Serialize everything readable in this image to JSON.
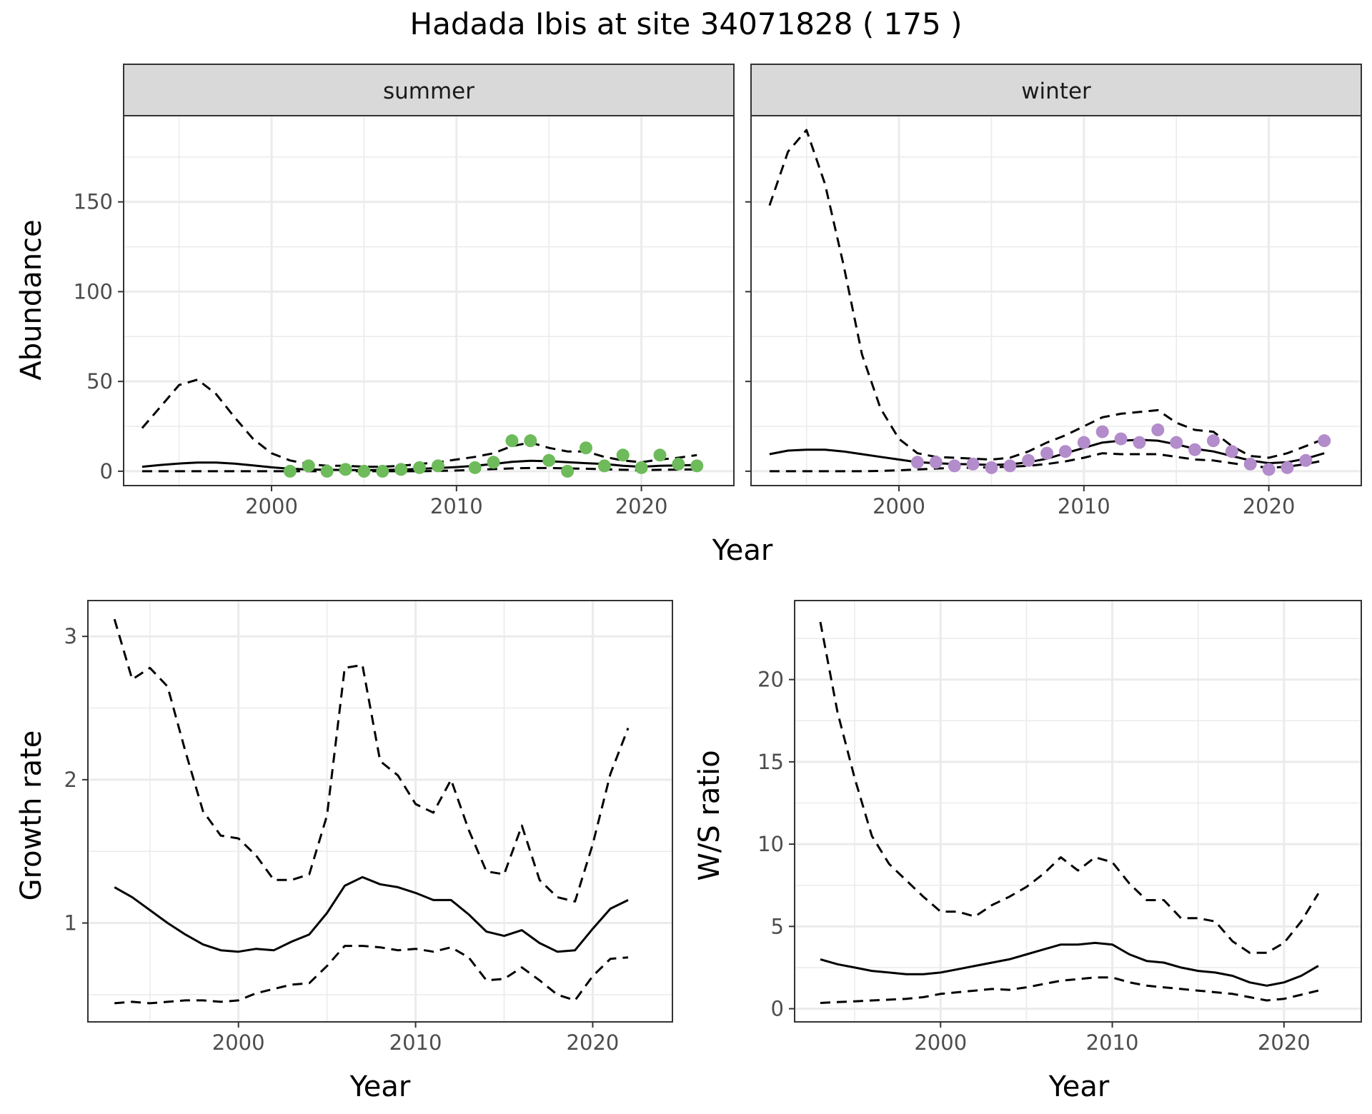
{
  "title": "Hadada Ibis at site 34071828 ( 175 )",
  "colors": {
    "summer_points": "#6dbb5a",
    "winter_points": "#b38ccb",
    "strip_fill": "#d9d9d9",
    "grid": "#ebebeb"
  },
  "chart_data": [
    {
      "type": "line",
      "facet": "summer",
      "xlabel": "Year",
      "ylabel": "Abundance",
      "xlim": [
        1992,
        2025
      ],
      "ylim": [
        -8,
        198
      ],
      "x_ticks": [
        2000,
        2010,
        2020
      ],
      "x_tick_labels": [
        "2000",
        "2010",
        "2020"
      ],
      "y_ticks": [
        0,
        50,
        100,
        150
      ],
      "y_tick_labels": [
        "0",
        "50",
        "100",
        "150"
      ],
      "grid": true,
      "series": [
        {
          "style": "solid",
          "x": [
            1993,
            1994,
            1995,
            1996,
            1997,
            1998,
            1999,
            2000,
            2001,
            2002,
            2003,
            2004,
            2005,
            2006,
            2007,
            2008,
            2009,
            2010,
            2011,
            2012,
            2013,
            2014,
            2015,
            2016,
            2017,
            2018,
            2019,
            2020,
            2021,
            2022,
            2023
          ],
          "values": [
            2.5,
            3.5,
            4.3,
            4.8,
            4.8,
            4.2,
            3.2,
            2.2,
            1.4,
            1.0,
            0.8,
            0.7,
            0.6,
            0.7,
            0.9,
            1.3,
            1.8,
            2.3,
            3.0,
            4.0,
            5.2,
            5.8,
            5.6,
            5.0,
            4.5,
            4.0,
            3.0,
            2.5,
            3.0,
            3.2,
            3.5
          ]
        },
        {
          "style": "dashed",
          "x": [
            1993,
            1994,
            1995,
            1996,
            1997,
            1998,
            1999,
            2000,
            2001,
            2002,
            2003,
            2004,
            2005,
            2006,
            2007,
            2008,
            2009,
            2010,
            2011,
            2012,
            2013,
            2014,
            2015,
            2016,
            2017,
            2018,
            2019,
            2020,
            2021,
            2022,
            2023
          ],
          "values": [
            24,
            36,
            48,
            51,
            43,
            30,
            18,
            10,
            6,
            4,
            3,
            3,
            2.5,
            2.5,
            3,
            4,
            5,
            6.5,
            8,
            10,
            14,
            16,
            13,
            11,
            11,
            8,
            6,
            5,
            6.5,
            7.5,
            9
          ]
        },
        {
          "style": "dashed",
          "x": [
            1993,
            1994,
            1995,
            1996,
            1997,
            1998,
            1999,
            2000,
            2001,
            2002,
            2003,
            2004,
            2005,
            2006,
            2007,
            2008,
            2009,
            2010,
            2011,
            2012,
            2013,
            2014,
            2015,
            2016,
            2017,
            2018,
            2019,
            2020,
            2021,
            2022,
            2023
          ],
          "values": [
            0,
            0,
            0,
            0,
            0,
            0,
            0,
            0,
            0,
            0,
            0,
            0,
            0,
            0,
            0,
            0,
            0.2,
            0.4,
            0.8,
            1.2,
            1.6,
            1.8,
            1.8,
            1.6,
            1.4,
            1.1,
            0.8,
            0.6,
            0.8,
            0.9,
            1.0
          ]
        }
      ],
      "points": {
        "x": [
          2001,
          2002,
          2003,
          2004,
          2005,
          2006,
          2007,
          2008,
          2009,
          2011,
          2012,
          2013,
          2014,
          2015,
          2016,
          2017,
          2018,
          2019,
          2020,
          2021,
          2022,
          2023
        ],
        "y": [
          0,
          3,
          0,
          1,
          0,
          0,
          1,
          2,
          3,
          2,
          5,
          17,
          17,
          6,
          0,
          13,
          3,
          9,
          2,
          9,
          4,
          3
        ]
      }
    },
    {
      "type": "line",
      "facet": "winter",
      "xlabel": "Year",
      "ylabel": "Abundance",
      "xlim": [
        1992,
        2025
      ],
      "ylim": [
        -8,
        198
      ],
      "x_ticks": [
        2000,
        2010,
        2020
      ],
      "x_tick_labels": [
        "2000",
        "2010",
        "2020"
      ],
      "y_ticks": [
        0,
        50,
        100,
        150
      ],
      "grid": true,
      "series": [
        {
          "style": "solid",
          "x": [
            1993,
            1994,
            1995,
            1996,
            1997,
            1998,
            1999,
            2000,
            2001,
            2002,
            2003,
            2004,
            2005,
            2006,
            2007,
            2008,
            2009,
            2010,
            2011,
            2012,
            2013,
            2014,
            2015,
            2016,
            2017,
            2018,
            2019,
            2020,
            2021,
            2022,
            2023
          ],
          "values": [
            9.5,
            11.5,
            12,
            12,
            11,
            9.5,
            8,
            6.5,
            5,
            4.5,
            4,
            3.8,
            3.5,
            3.8,
            5,
            7,
            10,
            13,
            16,
            17,
            17.5,
            17,
            15,
            12.5,
            11,
            8.5,
            6,
            4.5,
            5,
            7,
            10
          ]
        },
        {
          "style": "dashed",
          "x": [
            1993,
            1994,
            1995,
            1996,
            1997,
            1998,
            1999,
            2000,
            2001,
            2002,
            2003,
            2004,
            2005,
            2006,
            2007,
            2008,
            2009,
            2010,
            2011,
            2012,
            2013,
            2014,
            2015,
            2016,
            2017,
            2018,
            2019,
            2020,
            2021,
            2022,
            2023
          ],
          "values": [
            148,
            178,
            190,
            160,
            115,
            65,
            35,
            18,
            10,
            8,
            7.5,
            7,
            6.5,
            7.5,
            11,
            16,
            20,
            25,
            30,
            32,
            33,
            34,
            27,
            23,
            22,
            14,
            8.5,
            7.5,
            10,
            14,
            18
          ]
        },
        {
          "style": "dashed",
          "x": [
            1993,
            1994,
            1995,
            1996,
            1997,
            1998,
            1999,
            2000,
            2001,
            2002,
            2003,
            2004,
            2005,
            2006,
            2007,
            2008,
            2009,
            2010,
            2011,
            2012,
            2013,
            2014,
            2015,
            2016,
            2017,
            2018,
            2019,
            2020,
            2021,
            2022,
            2023
          ],
          "values": [
            0,
            0,
            0,
            0,
            0,
            0,
            0.2,
            0.5,
            1,
            1.5,
            1.8,
            2,
            2.2,
            2.5,
            3,
            4,
            5.5,
            7.5,
            10,
            9.5,
            9.5,
            9.5,
            8,
            6.5,
            6,
            4.5,
            3,
            2,
            2.5,
            4,
            6
          ]
        }
      ],
      "points": {
        "x": [
          2001,
          2002,
          2003,
          2004,
          2005,
          2006,
          2007,
          2008,
          2009,
          2010,
          2011,
          2012,
          2013,
          2014,
          2015,
          2016,
          2017,
          2018,
          2019,
          2020,
          2021,
          2022,
          2023
        ],
        "y": [
          5,
          5,
          3,
          4,
          2,
          3,
          6,
          10,
          11,
          16,
          22,
          18,
          16,
          23,
          16,
          12,
          17,
          11,
          4,
          1,
          2,
          6,
          17
        ]
      }
    },
    {
      "type": "line",
      "xlabel": "Year",
      "ylabel": "Growth rate",
      "xlim": [
        1991.5,
        2024.5
      ],
      "ylim": [
        0.31,
        3.25
      ],
      "x_ticks": [
        2000,
        2010,
        2020
      ],
      "x_tick_labels": [
        "2000",
        "2010",
        "2020"
      ],
      "y_ticks": [
        1,
        2,
        3
      ],
      "y_tick_labels": [
        "1",
        "2",
        "3"
      ],
      "grid": true,
      "series": [
        {
          "style": "solid",
          "x": [
            1993,
            1994,
            1995,
            1996,
            1997,
            1998,
            1999,
            2000,
            2001,
            2002,
            2003,
            2004,
            2005,
            2006,
            2007,
            2008,
            2009,
            2010,
            2011,
            2012,
            2013,
            2014,
            2015,
            2016,
            2017,
            2018,
            2019,
            2020,
            2021,
            2022
          ],
          "values": [
            1.25,
            1.18,
            1.09,
            1.0,
            0.92,
            0.85,
            0.81,
            0.8,
            0.82,
            0.81,
            0.87,
            0.92,
            1.07,
            1.26,
            1.32,
            1.27,
            1.25,
            1.21,
            1.16,
            1.16,
            1.06,
            0.94,
            0.91,
            0.95,
            0.86,
            0.8,
            0.81,
            0.96,
            1.1,
            1.16
          ]
        },
        {
          "style": "dashed",
          "x": [
            1993,
            1994,
            1995,
            1996,
            1997,
            1998,
            1999,
            2000,
            2001,
            2002,
            2003,
            2004,
            2005,
            2006,
            2007,
            2008,
            2009,
            2010,
            2011,
            2012,
            2013,
            2014,
            2015,
            2016,
            2017,
            2018,
            2019,
            2020,
            2021,
            2022
          ],
          "values": [
            3.12,
            2.7,
            2.78,
            2.65,
            2.2,
            1.78,
            1.61,
            1.59,
            1.47,
            1.3,
            1.3,
            1.34,
            1.75,
            2.78,
            2.8,
            2.13,
            2.03,
            1.83,
            1.77,
            2.0,
            1.65,
            1.36,
            1.34,
            1.68,
            1.3,
            1.18,
            1.15,
            1.55,
            2.04,
            2.36
          ]
        },
        {
          "style": "dashed",
          "x": [
            1993,
            1994,
            1995,
            1996,
            1997,
            1998,
            1999,
            2000,
            2001,
            2002,
            2003,
            2004,
            2005,
            2006,
            2007,
            2008,
            2009,
            2010,
            2011,
            2012,
            2013,
            2014,
            2015,
            2016,
            2017,
            2018,
            2019,
            2020,
            2021,
            2022
          ],
          "values": [
            0.44,
            0.45,
            0.44,
            0.45,
            0.46,
            0.46,
            0.45,
            0.46,
            0.51,
            0.54,
            0.57,
            0.58,
            0.7,
            0.84,
            0.84,
            0.83,
            0.81,
            0.82,
            0.8,
            0.83,
            0.76,
            0.6,
            0.61,
            0.69,
            0.6,
            0.5,
            0.46,
            0.63,
            0.75,
            0.76
          ]
        }
      ]
    },
    {
      "type": "line",
      "xlabel": "Year",
      "ylabel": "W/S ratio",
      "xlim": [
        1991.5,
        2024.5
      ],
      "ylim": [
        -0.8,
        24.8
      ],
      "x_ticks": [
        2000,
        2010,
        2020
      ],
      "x_tick_labels": [
        "2000",
        "2010",
        "2020"
      ],
      "y_ticks": [
        0,
        5,
        10,
        15,
        20
      ],
      "y_tick_labels": [
        "0",
        "5",
        "10",
        "15",
        "20"
      ],
      "grid": true,
      "series": [
        {
          "style": "solid",
          "x": [
            1993,
            1994,
            1995,
            1996,
            1997,
            1998,
            1999,
            2000,
            2001,
            2002,
            2003,
            2004,
            2005,
            2006,
            2007,
            2008,
            2009,
            2010,
            2011,
            2012,
            2013,
            2014,
            2015,
            2016,
            2017,
            2018,
            2019,
            2020,
            2021,
            2022
          ],
          "values": [
            3.0,
            2.7,
            2.5,
            2.3,
            2.2,
            2.1,
            2.1,
            2.2,
            2.4,
            2.6,
            2.8,
            3.0,
            3.3,
            3.6,
            3.9,
            3.9,
            4.0,
            3.9,
            3.3,
            2.9,
            2.8,
            2.5,
            2.3,
            2.2,
            2.0,
            1.6,
            1.4,
            1.6,
            2.0,
            2.6
          ]
        },
        {
          "style": "dashed",
          "x": [
            1993,
            1994,
            1995,
            1996,
            1997,
            1998,
            1999,
            2000,
            2001,
            2002,
            2003,
            2004,
            2005,
            2006,
            2007,
            2008,
            2009,
            2010,
            2011,
            2012,
            2013,
            2014,
            2015,
            2016,
            2017,
            2018,
            2019,
            2020,
            2021,
            2022
          ],
          "values": [
            23.5,
            18.0,
            14.0,
            10.5,
            8.8,
            7.8,
            6.8,
            5.9,
            5.9,
            5.6,
            6.3,
            6.8,
            7.4,
            8.2,
            9.2,
            8.4,
            9.2,
            8.9,
            7.6,
            6.6,
            6.6,
            5.5,
            5.5,
            5.3,
            4.1,
            3.4,
            3.4,
            4.0,
            5.3,
            7.0
          ]
        },
        {
          "style": "dashed",
          "x": [
            1993,
            1994,
            1995,
            1996,
            1997,
            1998,
            1999,
            2000,
            2001,
            2002,
            2003,
            2004,
            2005,
            2006,
            2007,
            2008,
            2009,
            2010,
            2011,
            2012,
            2013,
            2014,
            2015,
            2016,
            2017,
            2018,
            2019,
            2020,
            2021,
            2022
          ],
          "values": [
            0.35,
            0.4,
            0.45,
            0.5,
            0.55,
            0.6,
            0.7,
            0.9,
            1.0,
            1.1,
            1.2,
            1.15,
            1.3,
            1.5,
            1.7,
            1.8,
            1.9,
            1.9,
            1.6,
            1.4,
            1.3,
            1.2,
            1.1,
            1.0,
            0.9,
            0.7,
            0.5,
            0.6,
            0.85,
            1.1
          ]
        }
      ]
    }
  ],
  "labels": {
    "summer": "summer",
    "winter": "winter",
    "abundance_y": "Abundance",
    "top_x": "Year",
    "growth_y": "Growth rate",
    "growth_x": "Year",
    "ws_y": "W/S ratio",
    "ws_x": "Year"
  }
}
